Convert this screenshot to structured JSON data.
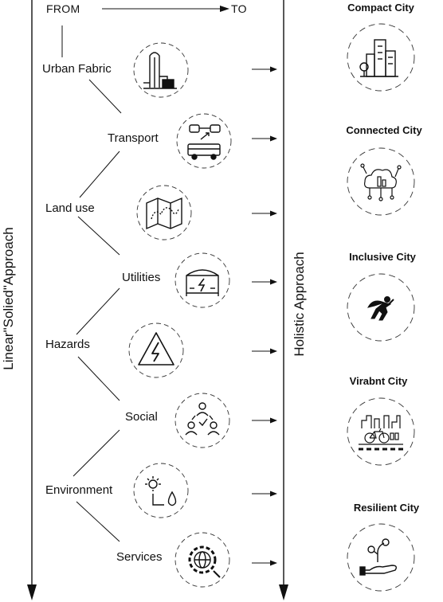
{
  "header": {
    "from": "FROM",
    "to": "TO"
  },
  "left_axis_label": "Linear\"Solied\"Approach",
  "right_axis_label": "Holistic Approach",
  "sectors": [
    {
      "label": "Urban Fabric",
      "icon": "skyscraper-icon"
    },
    {
      "label": "Transport",
      "icon": "transport-icon"
    },
    {
      "label": "Land use",
      "icon": "map-icon"
    },
    {
      "label": "Utilities",
      "icon": "power-station-icon"
    },
    {
      "label": "Hazards",
      "icon": "electric-hazard-icon"
    },
    {
      "label": "Social",
      "icon": "people-network-icon"
    },
    {
      "label": "Environment",
      "icon": "sun-water-icon"
    },
    {
      "label": "Services",
      "icon": "gear-globe-icon"
    }
  ],
  "cities": [
    {
      "label": "Compact City",
      "icon": "buildings-icon"
    },
    {
      "label": "Connected City",
      "icon": "cloud-network-icon"
    },
    {
      "label": "Inclusive City",
      "icon": "superhero-icon"
    },
    {
      "label": "Virabnt City",
      "icon": "bicycle-city-icon"
    },
    {
      "label": "Resilient City",
      "icon": "hand-plant-icon"
    }
  ]
}
